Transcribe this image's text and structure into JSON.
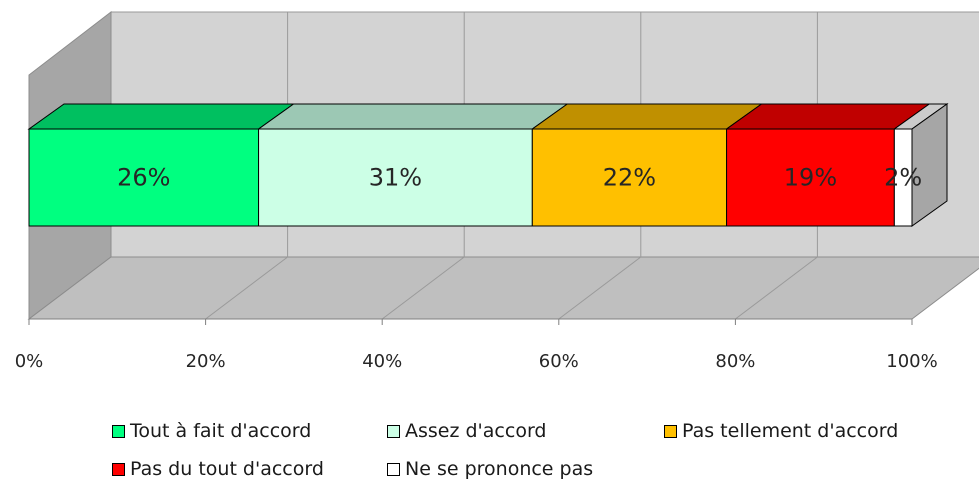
{
  "chart_data": {
    "type": "bar",
    "orientation": "horizontal",
    "stacked": true,
    "percent_stacked": true,
    "three_d": true,
    "categories": [
      ""
    ],
    "series": [
      {
        "name": "Tout à fait d'accord",
        "values": [
          26
        ],
        "label": "26%",
        "color": "#00ff80",
        "top_color": "#00c060",
        "side_color": "#00a050"
      },
      {
        "name": "Assez d'accord",
        "values": [
          31
        ],
        "label": "31%",
        "color": "#ccffe6",
        "top_color": "#9cc8b4",
        "side_color": "#8ab09e"
      },
      {
        "name": "Pas tellement d'accord",
        "values": [
          22
        ],
        "label": "22%",
        "color": "#ffc000",
        "top_color": "#c09000",
        "side_color": "#a07800"
      },
      {
        "name": "Pas du tout d'accord",
        "values": [
          19
        ],
        "label": "19%",
        "color": "#ff0000",
        "top_color": "#c00000",
        "side_color": "#a00000"
      },
      {
        "name": "Ne se prononce pas",
        "values": [
          2
        ],
        "label": "2%",
        "color": "#ffffff",
        "top_color": "#cccccc",
        "side_color": "#999999"
      }
    ],
    "x_ticks": [
      "0%",
      "20%",
      "40%",
      "60%",
      "80%",
      "100%"
    ],
    "xlim": [
      0,
      100
    ],
    "grid": true,
    "legend_position": "bottom",
    "title": "",
    "xlabel": "",
    "ylabel": ""
  }
}
